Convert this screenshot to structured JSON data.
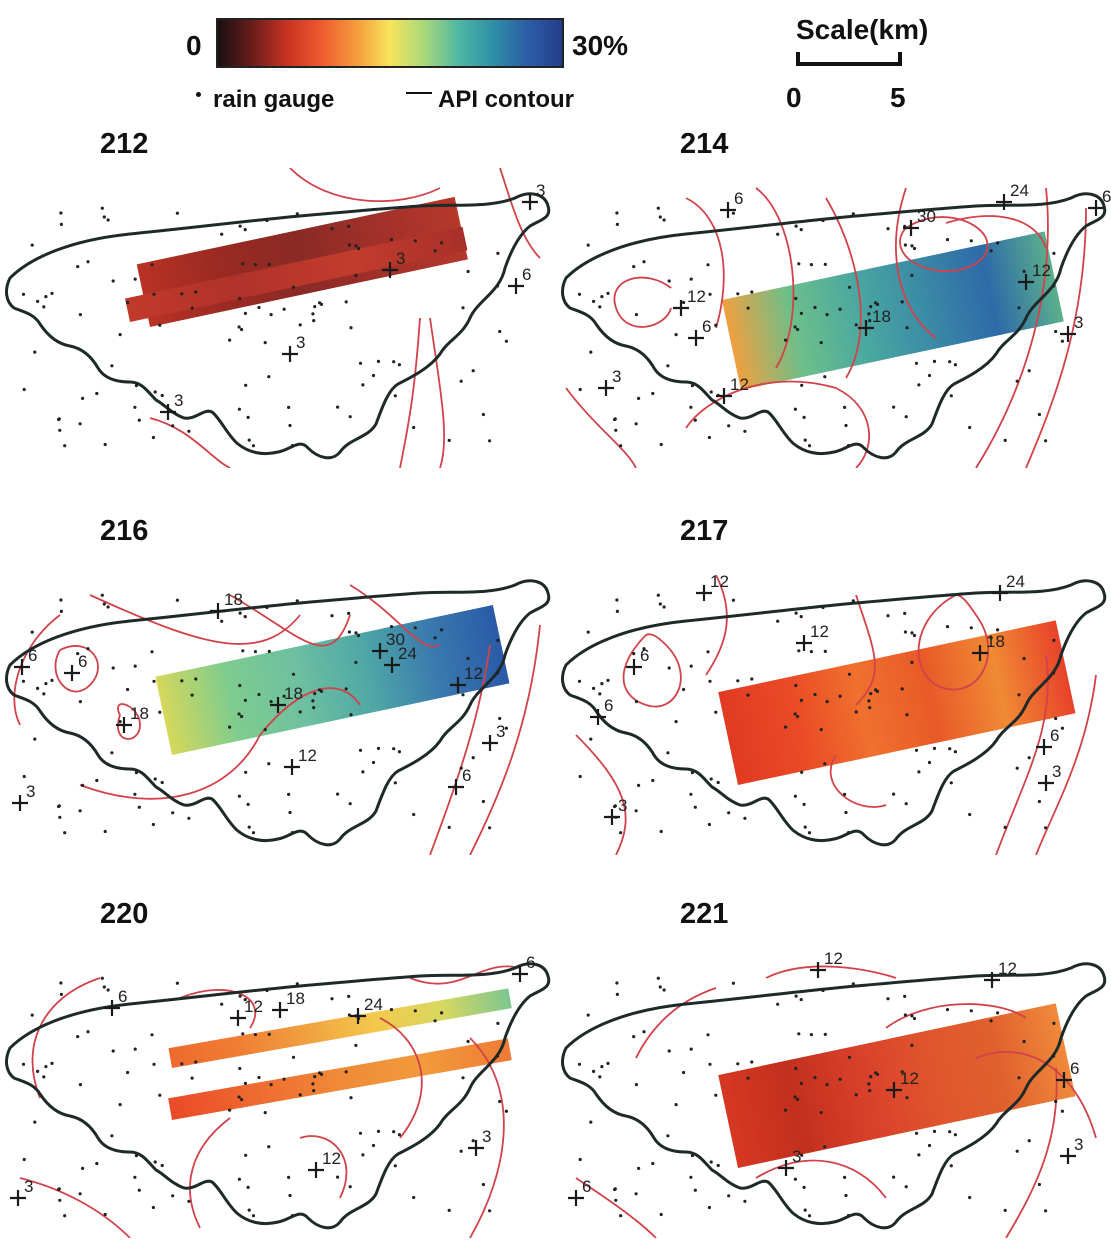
{
  "legend": {
    "min_label": "0",
    "max_label": "30%",
    "gauge_label": "rain gauge",
    "contour_label": "API contour",
    "colorbar_stops": [
      "#1a0f12",
      "#6b1d1b",
      "#c73222",
      "#ee5a2e",
      "#f59a3c",
      "#f7e45a",
      "#a8d87a",
      "#4fb7a4",
      "#2f8fa8",
      "#2c5da6",
      "#243e8c"
    ]
  },
  "scale": {
    "title": "Scale(km)",
    "min": "0",
    "max": "5"
  },
  "colors": {
    "contour": "#d1424a",
    "outline": "#1e2a2a",
    "gauge": "#222222",
    "marker": "#1a1a1a"
  },
  "panels": [
    {
      "title": "212",
      "strips": [
        {
          "colors": [
            "#b83224",
            "#9a2a22",
            "#8a2a26",
            "#a3302a",
            "#b5382a"
          ]
        },
        {
          "colors": [
            "#c03a2a",
            "#b0322a",
            "#c23c2c",
            "#a8302a"
          ]
        }
      ],
      "labels": [
        "3",
        "3",
        "6",
        "3",
        "3"
      ]
    },
    {
      "title": "214",
      "strips": [
        {
          "colors": [
            "#f0a040",
            "#6cbf8a",
            "#4aa8a0",
            "#3a8aa6",
            "#2e6aa8",
            "#5bb08c"
          ]
        }
      ],
      "labels": [
        "6",
        "30",
        "24",
        "6",
        "12",
        "12",
        "6",
        "18",
        "3",
        "3",
        "12"
      ]
    },
    {
      "title": "216",
      "strips": [
        {
          "colors": [
            "#d6d85a",
            "#7fcc8e",
            "#6ec0a0",
            "#4fa8a6",
            "#3a7aae",
            "#2a5aa8"
          ]
        }
      ],
      "labels": [
        "18",
        "6",
        "6",
        "30",
        "24",
        "12",
        "18",
        "18",
        "12",
        "3",
        "3",
        "6"
      ]
    },
    {
      "title": "217",
      "strips": [
        {
          "colors": [
            "#e13a22",
            "#ea4a26",
            "#f0702e",
            "#e85a28",
            "#f08a34",
            "#e8422a"
          ]
        }
      ],
      "labels": [
        "12",
        "24",
        "12",
        "18",
        "6",
        "6",
        "6",
        "3",
        "3"
      ]
    },
    {
      "title": "220",
      "strips": [
        {
          "colors": [
            "#ee6a2c",
            "#f07e34",
            "#f0a040",
            "#f4c84c",
            "#d8d860",
            "#7cc690"
          ]
        },
        {
          "colors": [
            "#ea4a28",
            "#ee6a30",
            "#f08a38",
            "#f29a3c",
            "#ee7a34"
          ]
        }
      ],
      "labels": [
        "6",
        "12",
        "18",
        "24",
        "6",
        "12",
        "3",
        "3"
      ]
    },
    {
      "title": "221",
      "strips": [
        {
          "colors": [
            "#d63822",
            "#c2301e",
            "#d8402a",
            "#e0542c",
            "#e0602e",
            "#f08a3a"
          ]
        }
      ],
      "labels": [
        "12",
        "12",
        "12",
        "6",
        "3",
        "3",
        "6"
      ]
    }
  ]
}
